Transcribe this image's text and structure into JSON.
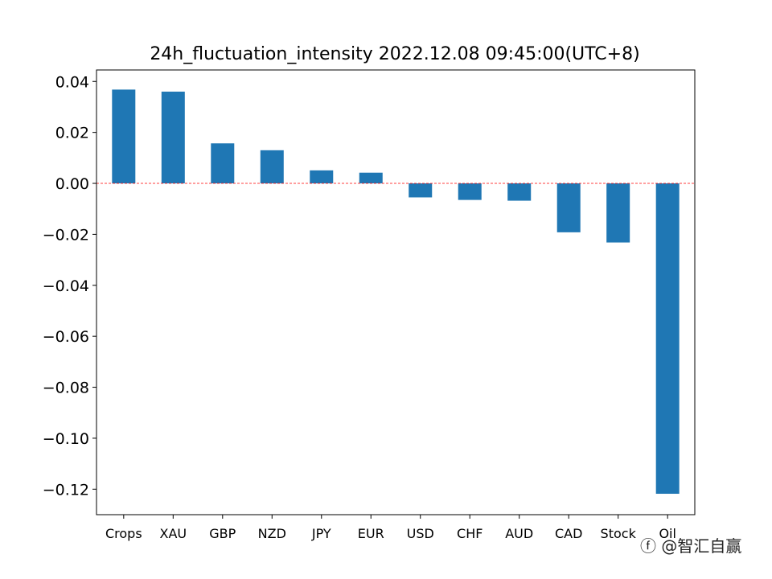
{
  "chart_data": {
    "type": "bar",
    "title": "24h_fluctuation_intensity 2022.12.08 09:45:00(UTC+8)",
    "categories": [
      "Crops",
      "XAU",
      "GBP",
      "NZD",
      "JPY",
      "EUR",
      "USD",
      "CHF",
      "AUD",
      "CAD",
      "Stock",
      "Oil"
    ],
    "values": [
      0.0368,
      0.036,
      0.0157,
      0.013,
      0.0051,
      0.0042,
      -0.0055,
      -0.0065,
      -0.0068,
      -0.0192,
      -0.0232,
      -0.1218
    ],
    "ylim": [
      -0.13,
      0.0445
    ],
    "yticks": [
      0.04,
      0.02,
      0.0,
      -0.02,
      -0.04,
      -0.06,
      -0.08,
      -0.1,
      -0.12
    ],
    "ytick_labels": [
      "0.04",
      "0.02",
      "0.00",
      "−0.02",
      "−0.04",
      "−0.06",
      "−0.08",
      "−0.10",
      "−0.12"
    ],
    "bar_color": "#1f77b4",
    "zero_line_color": "#ff0000",
    "zero_line_style": "dashed",
    "grid": false,
    "legend": "none"
  },
  "watermark": {
    "text": "ⓕ @智汇自赢"
  }
}
